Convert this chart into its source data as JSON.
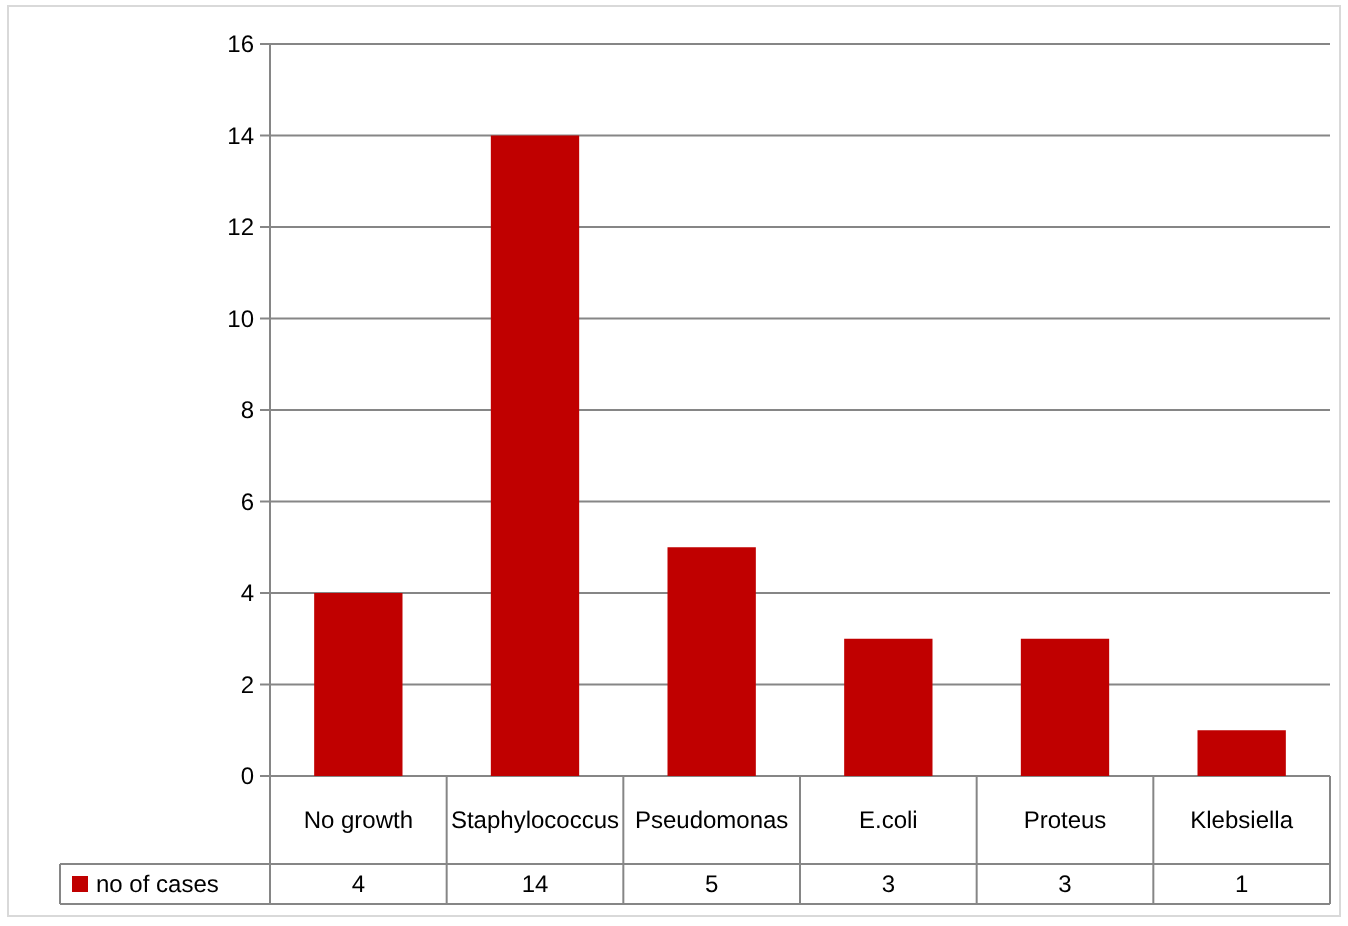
{
  "chart_data": {
    "type": "bar",
    "categories": [
      "No growth",
      "Staphylococcus",
      "Pseudomonas",
      "E.coli",
      "Proteus",
      "Klebsiella"
    ],
    "series": [
      {
        "name": "no of cases",
        "color": "#c00000",
        "values": [
          4,
          14,
          5,
          3,
          3,
          1
        ]
      }
    ],
    "ylim": [
      0,
      16
    ],
    "yticks": [
      0,
      2,
      4,
      6,
      8,
      10,
      12,
      14,
      16
    ],
    "grid": "y",
    "legend": "bottom",
    "data_labels": true
  }
}
